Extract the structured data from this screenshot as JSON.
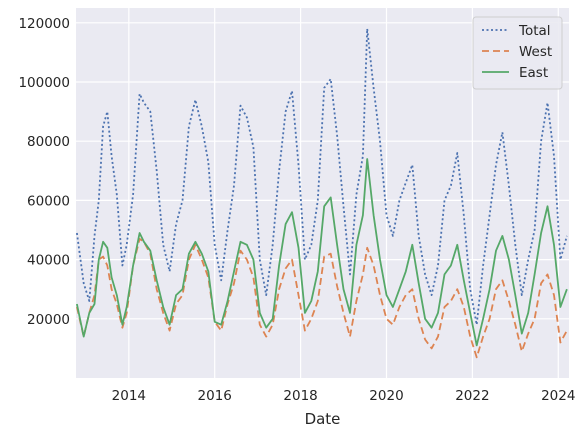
{
  "chart_data": {
    "type": "line",
    "title": "",
    "xlabel": "Date",
    "ylabel": "",
    "xlim": [
      2012.77,
      2024.25
    ],
    "ylim": [
      0,
      125000
    ],
    "x_ticks": [
      2014,
      2016,
      2018,
      2020,
      2022,
      2024
    ],
    "x_tick_labels": [
      "2014",
      "2016",
      "2018",
      "2020",
      "2022",
      "2024"
    ],
    "y_ticks": [
      20000,
      40000,
      60000,
      80000,
      100000,
      120000
    ],
    "y_tick_labels": [
      "20000",
      "40000",
      "60000",
      "80000",
      "100000",
      "120000"
    ],
    "grid": true,
    "legend_position": "top-right",
    "x": [
      2012.79,
      2012.95,
      2013.08,
      2013.2,
      2013.3,
      2013.4,
      2013.5,
      2013.6,
      2013.72,
      2013.85,
      2013.95,
      2014.1,
      2014.25,
      2014.35,
      2014.5,
      2014.65,
      2014.8,
      2014.95,
      2015.1,
      2015.25,
      2015.4,
      2015.55,
      2015.7,
      2015.85,
      2016.0,
      2016.15,
      2016.3,
      2016.45,
      2016.6,
      2016.75,
      2016.9,
      2017.05,
      2017.2,
      2017.35,
      2017.5,
      2017.65,
      2017.8,
      2017.95,
      2018.1,
      2018.25,
      2018.4,
      2018.55,
      2018.7,
      2018.85,
      2019.0,
      2019.15,
      2019.3,
      2019.45,
      2019.55,
      2019.7,
      2019.85,
      2020.0,
      2020.15,
      2020.3,
      2020.45,
      2020.6,
      2020.75,
      2020.9,
      2021.05,
      2021.2,
      2021.35,
      2021.5,
      2021.65,
      2021.8,
      2021.95,
      2022.1,
      2022.25,
      2022.4,
      2022.55,
      2022.7,
      2022.85,
      2023.0,
      2023.15,
      2023.3,
      2023.45,
      2023.6,
      2023.75,
      2023.9,
      2024.05,
      2024.2
    ],
    "series": [
      {
        "name": "Total",
        "color": "#4c72b0",
        "dash": "dotted",
        "values": [
          49000,
          32000,
          26000,
          48000,
          60000,
          85000,
          90000,
          75000,
          62000,
          38000,
          45000,
          62000,
          96000,
          93000,
          90000,
          70000,
          45000,
          36000,
          52000,
          60000,
          85000,
          94000,
          85000,
          73000,
          45000,
          33000,
          50000,
          65000,
          92000,
          88000,
          78000,
          40000,
          28000,
          45000,
          70000,
          90000,
          97000,
          72000,
          40000,
          45000,
          60000,
          98000,
          101000,
          82000,
          58000,
          35000,
          62000,
          75000,
          118000,
          98000,
          80000,
          55000,
          48000,
          60000,
          66000,
          72000,
          48000,
          35000,
          28000,
          38000,
          60000,
          65000,
          76000,
          55000,
          30000,
          18000,
          38000,
          55000,
          72000,
          83000,
          65000,
          45000,
          28000,
          40000,
          50000,
          80000,
          93000,
          75000,
          40000,
          48000
        ]
      },
      {
        "name": "West",
        "color": "#dd8452",
        "dash": "dashed",
        "values": [
          24000,
          14000,
          22000,
          28000,
          40000,
          41000,
          38000,
          30000,
          25000,
          17000,
          22000,
          38000,
          47000,
          46000,
          42000,
          30000,
          22000,
          16000,
          25000,
          28000,
          40000,
          45000,
          40000,
          34000,
          19000,
          16000,
          25000,
          32000,
          43000,
          40000,
          34000,
          18000,
          14000,
          18000,
          30000,
          37000,
          40000,
          28000,
          16000,
          20000,
          26000,
          41000,
          42000,
          31000,
          22000,
          14000,
          26000,
          35000,
          44000,
          38000,
          28000,
          20000,
          18000,
          24000,
          28000,
          30000,
          20000,
          13000,
          10000,
          14000,
          24000,
          26000,
          30000,
          24000,
          14000,
          7000,
          14000,
          20000,
          30000,
          33000,
          26000,
          18000,
          9000,
          15000,
          20000,
          32000,
          35000,
          28000,
          12000,
          16000
        ]
      },
      {
        "name": "East",
        "color": "#55a868",
        "dash": "solid",
        "values": [
          25000,
          14000,
          22000,
          25000,
          40000,
          46000,
          44000,
          34000,
          28000,
          18000,
          24000,
          38000,
          49000,
          46000,
          43000,
          33000,
          24000,
          18000,
          28000,
          30000,
          42000,
          46000,
          42000,
          36000,
          19000,
          18000,
          26000,
          36000,
          46000,
          45000,
          40000,
          22000,
          17000,
          20000,
          38000,
          52000,
          56000,
          44000,
          22000,
          26000,
          36000,
          58000,
          61000,
          45000,
          30000,
          22000,
          45000,
          55000,
          74000,
          55000,
          40000,
          28000,
          24000,
          30000,
          36000,
          45000,
          32000,
          20000,
          17000,
          22000,
          35000,
          38000,
          45000,
          33000,
          22000,
          11000,
          20000,
          30000,
          43000,
          48000,
          40000,
          28000,
          15000,
          22000,
          35000,
          49000,
          58000,
          45000,
          24000,
          30000
        ]
      }
    ]
  }
}
